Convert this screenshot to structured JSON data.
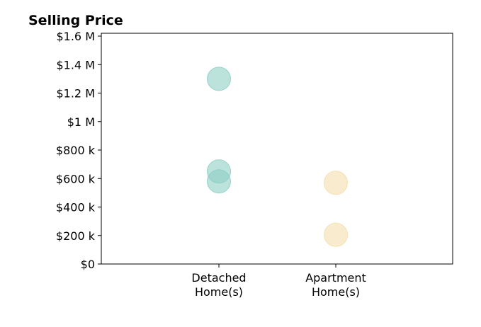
{
  "chart_data": {
    "type": "scatter",
    "title": "Selling Price",
    "xlabel": "",
    "ylabel": "",
    "ylim": [
      0,
      1620000
    ],
    "grid": false,
    "y_ticks": [
      {
        "value": 0,
        "label": "$0"
      },
      {
        "value": 200000,
        "label": "$200 k"
      },
      {
        "value": 400000,
        "label": "$400 k"
      },
      {
        "value": 600000,
        "label": "$600 k"
      },
      {
        "value": 800000,
        "label": "$800 k"
      },
      {
        "value": 1000000,
        "label": "$1 M"
      },
      {
        "value": 1200000,
        "label": "$1.2 M"
      },
      {
        "value": 1400000,
        "label": "$1.4 M"
      },
      {
        "value": 1600000,
        "label": "$1.6 M"
      }
    ],
    "categories": [
      {
        "lines": [
          "Detached",
          "Home(s)"
        ],
        "color": "#8fcfc5"
      },
      {
        "lines": [
          "Apartment",
          "Home(s)"
        ],
        "color": "#f5deae"
      }
    ],
    "points": [
      {
        "category": 0,
        "y": 1300000
      },
      {
        "category": 0,
        "y": 650000
      },
      {
        "category": 0,
        "y": 580000
      },
      {
        "category": 1,
        "y": 570000
      },
      {
        "category": 1,
        "y": 205000
      }
    ]
  }
}
